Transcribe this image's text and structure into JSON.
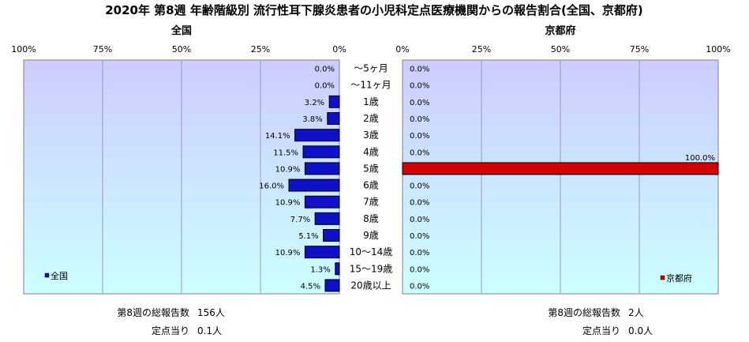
{
  "title": "2020年 第8週 年齢階級別 流行性耳下腺炎患者の小児科定点医療機関からの報告割合(全国、京都府)",
  "chart_data": [
    {
      "type": "bar",
      "orientation": "horizontal",
      "direction": "right-to-left",
      "title": "全国",
      "categories": [
        "～5ヶ月",
        "～11ヶ月",
        "1歳",
        "2歳",
        "3歳",
        "4歳",
        "5歳",
        "6歳",
        "7歳",
        "8歳",
        "9歳",
        "10～14歳",
        "15～19歳",
        "20歳以上"
      ],
      "series": [
        {
          "name": "全国",
          "values": [
            0.0,
            0.0,
            3.2,
            3.8,
            14.1,
            11.5,
            10.9,
            16.0,
            10.9,
            7.7,
            5.1,
            10.9,
            1.3,
            4.5
          ],
          "color": "#1010c8"
        }
      ],
      "value_labels": [
        "0.0%",
        "0.0%",
        "3.2%",
        "3.8%",
        "14.1%",
        "11.5%",
        "10.9%",
        "16.0%",
        "10.9%",
        "7.7%",
        "5.1%",
        "10.9%",
        "1.3%",
        "4.5%"
      ],
      "xlim": [
        0,
        100
      ],
      "xticks": [
        "100%",
        "75%",
        "50%",
        "25%",
        "0%"
      ],
      "legend": "bottom-left",
      "grid": true
    },
    {
      "type": "bar",
      "orientation": "horizontal",
      "direction": "left-to-right",
      "title": "京都府",
      "categories": [
        "～5ヶ月",
        "～11ヶ月",
        "1歳",
        "2歳",
        "3歳",
        "4歳",
        "5歳",
        "6歳",
        "7歳",
        "8歳",
        "9歳",
        "10～14歳",
        "15～19歳",
        "20歳以上"
      ],
      "series": [
        {
          "name": "京都府",
          "values": [
            0.0,
            0.0,
            0.0,
            0.0,
            0.0,
            0.0,
            100.0,
            0.0,
            0.0,
            0.0,
            0.0,
            0.0,
            0.0,
            0.0
          ],
          "color": "#d40000"
        }
      ],
      "value_labels": [
        "0.0%",
        "0.0%",
        "0.0%",
        "0.0%",
        "0.0%",
        "0.0%",
        "100.0%",
        "0.0%",
        "0.0%",
        "0.0%",
        "0.0%",
        "0.0%",
        "0.0%",
        "0.0%"
      ],
      "xlim": [
        0,
        100
      ],
      "xticks": [
        "0%",
        "25%",
        "50%",
        "75%",
        "100%"
      ],
      "legend": "bottom-right",
      "grid": true
    }
  ],
  "footer": {
    "left_total_label": "第8週の総報告数",
    "left_total_value": "156人",
    "left_per_label": "定点当り",
    "left_per_value": "0.1人",
    "right_total_label": "第8週の総報告数",
    "right_total_value": "2人",
    "right_per_label": "定点当り",
    "right_per_value": "0.0人"
  },
  "colors": {
    "plot_top": "#ccccff",
    "plot_bottom": "#ccffff",
    "grid": "#9a9ab8"
  }
}
